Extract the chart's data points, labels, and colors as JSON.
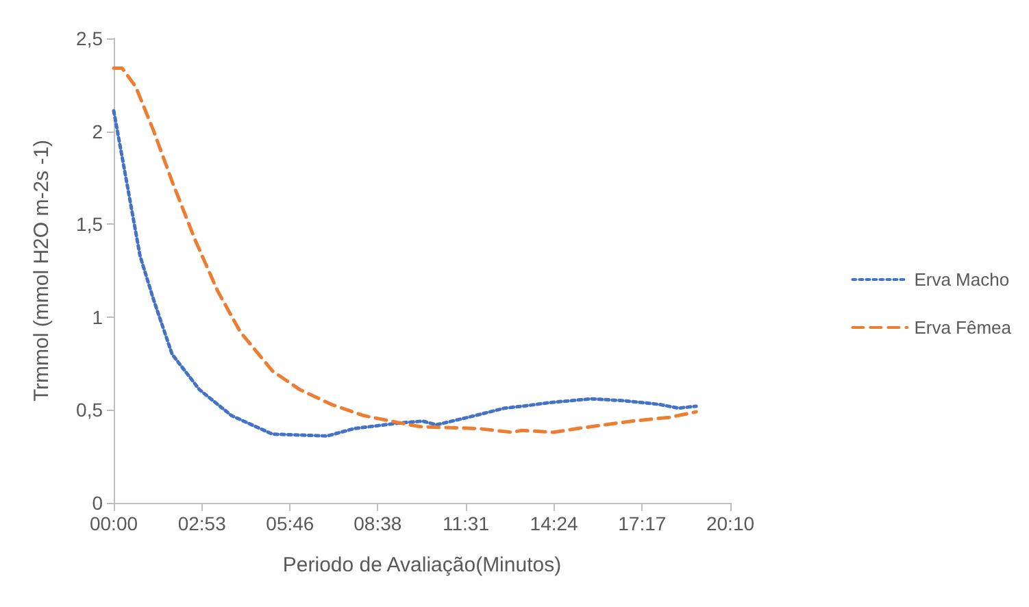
{
  "chart_data": {
    "type": "line",
    "xlabel": "Periodo de Avaliação(Minutos)",
    "ylabel": "Trmmol (mmol H2O m-2s -1)",
    "xlim": [
      0,
      20.1667
    ],
    "xticks": [
      {
        "value": 0,
        "label": "00:00"
      },
      {
        "value": 2.8833,
        "label": "02:53"
      },
      {
        "value": 5.7667,
        "label": "05:46"
      },
      {
        "value": 8.6333,
        "label": "08:38"
      },
      {
        "value": 11.5167,
        "label": "11:31"
      },
      {
        "value": 14.4,
        "label": "14:24"
      },
      {
        "value": 17.2833,
        "label": "17:17"
      },
      {
        "value": 20.1667,
        "label": "20:10"
      }
    ],
    "ylim": [
      0,
      2.5
    ],
    "yticks": [
      {
        "value": 0,
        "label": "0"
      },
      {
        "value": 0.5,
        "label": "0,5"
      },
      {
        "value": 1,
        "label": "1"
      },
      {
        "value": 1.5,
        "label": "1,5"
      },
      {
        "value": 2,
        "label": "2"
      },
      {
        "value": 2.5,
        "label": "2,5"
      }
    ],
    "grid": false,
    "legend": "right",
    "marker": "none",
    "series": [
      {
        "name": "Erva Macho",
        "color": "#4472c4",
        "line_style": "dotted",
        "x": [
          0,
          0.42,
          0.86,
          1.31,
          1.91,
          2.8,
          3.85,
          5.19,
          6.98,
          7.87,
          9.35,
          10.11,
          10.55,
          11.58,
          12.79,
          13.37,
          14.27,
          15.61,
          16.68,
          17.84,
          18.47,
          19.05
        ],
        "values": [
          2.11,
          1.73,
          1.33,
          1.09,
          0.8,
          0.61,
          0.47,
          0.37,
          0.36,
          0.4,
          0.43,
          0.44,
          0.42,
          0.46,
          0.51,
          0.52,
          0.54,
          0.56,
          0.55,
          0.53,
          0.51,
          0.52
        ]
      },
      {
        "name": "Erva Fêmea",
        "color": "#ed7d31",
        "line_style": "dashed",
        "x": [
          0,
          0.27,
          0.72,
          1.31,
          1.91,
          2.65,
          3.4,
          4.14,
          5.19,
          6.08,
          7.12,
          8.17,
          9.36,
          10.02,
          11.9,
          13.03,
          13.34,
          14.37,
          15.16,
          16.95,
          18.16,
          19.05
        ],
        "values": [
          2.34,
          2.34,
          2.24,
          2.0,
          1.73,
          1.42,
          1.14,
          0.92,
          0.71,
          0.61,
          0.53,
          0.47,
          0.43,
          0.41,
          0.4,
          0.38,
          0.39,
          0.38,
          0.4,
          0.44,
          0.46,
          0.49
        ]
      }
    ]
  }
}
